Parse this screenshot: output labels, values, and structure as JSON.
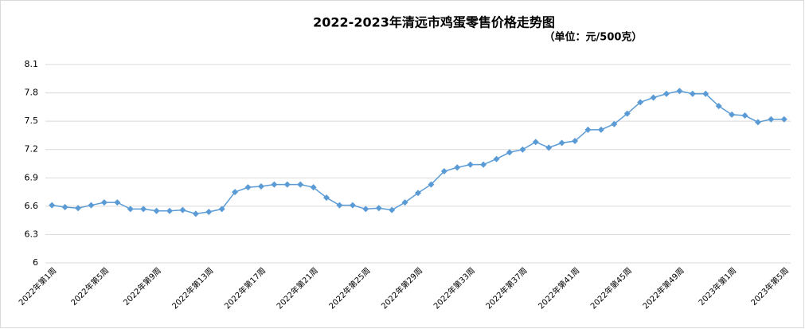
{
  "chart_data": {
    "type": "line",
    "title": "2022-2023年清远市鸡蛋零售价格走势图",
    "subtitle": "（单位：元/500克）",
    "categories": [
      "2022年第1周",
      null,
      null,
      null,
      "2022年第5周",
      null,
      null,
      null,
      "2022年第9周",
      null,
      null,
      null,
      "2022年第13周",
      null,
      null,
      null,
      "2022年第17周",
      null,
      null,
      null,
      "2022年第21周",
      null,
      null,
      null,
      "2022年第25周",
      null,
      null,
      null,
      "2022年第29周",
      null,
      null,
      null,
      "2022年第33周",
      null,
      null,
      null,
      "2022年第37周",
      null,
      null,
      null,
      "2022年第41周",
      null,
      null,
      null,
      "2022年第45周",
      null,
      null,
      null,
      "2022年第49周",
      null,
      null,
      null,
      "2023年第1周",
      null,
      null,
      null,
      "2023年第5周"
    ],
    "series": [
      {
        "color": "#5b9bd5",
        "values": [
          6.61,
          6.59,
          6.58,
          6.61,
          6.64,
          6.64,
          6.57,
          6.57,
          6.55,
          6.55,
          6.56,
          6.52,
          6.54,
          6.57,
          6.75,
          6.8,
          6.81,
          6.83,
          6.83,
          6.83,
          6.8,
          6.69,
          6.61,
          6.61,
          6.57,
          6.58,
          6.56,
          6.64,
          6.74,
          6.83,
          6.97,
          7.01,
          7.04,
          7.04,
          7.1,
          7.17,
          7.2,
          7.28,
          7.22,
          7.27,
          7.29,
          7.41,
          7.41,
          7.47,
          7.58,
          7.7,
          7.75,
          7.79,
          7.82,
          7.79,
          7.79,
          7.66,
          7.57,
          7.56,
          7.49,
          7.52,
          7.52
        ]
      }
    ],
    "ylim": [
      6,
      8.1
    ],
    "yticks": [
      6,
      6.3,
      6.6,
      6.9,
      7.2,
      7.5,
      7.8,
      8.1
    ],
    "grid": true
  }
}
